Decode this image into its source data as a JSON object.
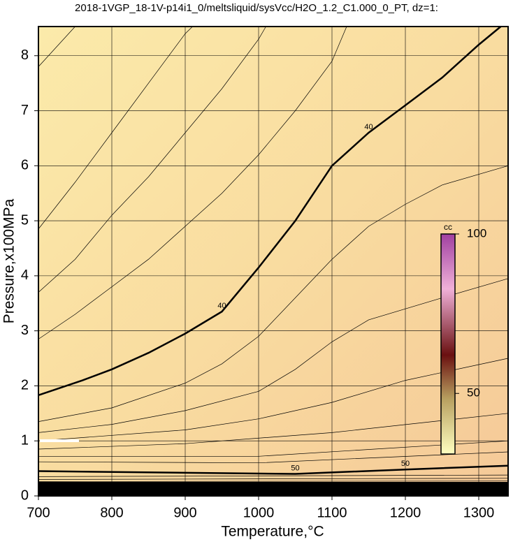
{
  "chart_data": {
    "type": "contour",
    "title": "2018-1VGP_18-1V-p14i1_0/meltsliquid/sysVcc/H2O_1.2_C1.000_0_PT, dz=1:",
    "xlabel": "Temperature,°C",
    "ylabel": "Pressure,x100MPa",
    "xlim": [
      700,
      1340
    ],
    "ylim": [
      0,
      8.53
    ],
    "xticks": [
      700,
      800,
      900,
      1000,
      1100,
      1200,
      1300
    ],
    "yticks": [
      0,
      1,
      2,
      3,
      4,
      5,
      6,
      7,
      8
    ],
    "grid": true,
    "colorbar": {
      "label": "cc",
      "lim": [
        31,
        100
      ],
      "ticks": [
        50,
        100
      ]
    },
    "contours": [
      {
        "label": "40",
        "thick": true,
        "x": [
          700,
          760,
          800,
          850,
          900,
          950,
          1000,
          1050,
          1100,
          1150,
          1200,
          1250,
          1300,
          1330
        ],
        "y": [
          1.83,
          2.1,
          2.3,
          2.6,
          2.95,
          3.35,
          4.15,
          5.0,
          6.0,
          6.6,
          7.1,
          7.6,
          8.2,
          8.53
        ]
      },
      {
        "x": [
          700,
          750,
          800,
          850,
          900,
          950,
          1000,
          1050,
          1100,
          1120
        ],
        "y": [
          2.85,
          3.3,
          3.8,
          4.3,
          4.9,
          5.5,
          6.2,
          7.0,
          7.9,
          8.53
        ]
      },
      {
        "x": [
          700,
          750,
          800,
          850,
          900,
          950,
          1000,
          1010
        ],
        "y": [
          3.7,
          4.3,
          5.1,
          5.8,
          6.6,
          7.4,
          8.3,
          8.53
        ]
      },
      {
        "x": [
          700,
          750,
          800,
          850,
          900,
          910
        ],
        "y": [
          4.85,
          5.7,
          6.6,
          7.5,
          8.4,
          8.53
        ]
      },
      {
        "x": [
          700,
          750
        ],
        "y": [
          7.8,
          8.53
        ]
      },
      {
        "x": [
          700,
          800,
          900,
          950,
          1000,
          1050,
          1100,
          1150,
          1200,
          1250,
          1340
        ],
        "y": [
          1.35,
          1.6,
          2.05,
          2.4,
          2.9,
          3.6,
          4.3,
          4.9,
          5.3,
          5.65,
          6.0
        ]
      },
      {
        "x": [
          700,
          800,
          900,
          1000,
          1050,
          1100,
          1150,
          1250,
          1340
        ],
        "y": [
          1.15,
          1.3,
          1.55,
          1.9,
          2.3,
          2.8,
          3.2,
          3.6,
          3.95
        ]
      },
      {
        "x": [
          700,
          900,
          1000,
          1100,
          1200,
          1340
        ],
        "y": [
          1.0,
          1.2,
          1.4,
          1.7,
          2.1,
          2.5
        ]
      },
      {
        "x": [
          700,
          900,
          1100,
          1340
        ],
        "y": [
          0.85,
          0.95,
          1.15,
          1.5
        ]
      },
      {
        "x": [
          700,
          1000,
          1340
        ],
        "y": [
          0.72,
          0.72,
          1.0
        ]
      },
      {
        "x": [
          700,
          1000,
          1340
        ],
        "y": [
          0.62,
          0.6,
          0.8
        ]
      },
      {
        "label": "50",
        "thick": true,
        "x": [
          700,
          900,
          1050,
          1200,
          1340
        ],
        "y": [
          0.45,
          0.42,
          0.4,
          0.48,
          0.55
        ]
      },
      {
        "x": [
          700,
          1340
        ],
        "y": [
          0.35,
          0.38
        ]
      },
      {
        "x": [
          700,
          1340
        ],
        "y": [
          0.3,
          0.32
        ]
      },
      {
        "x": [
          700,
          1340
        ],
        "y": [
          0.26,
          0.27
        ]
      }
    ]
  }
}
